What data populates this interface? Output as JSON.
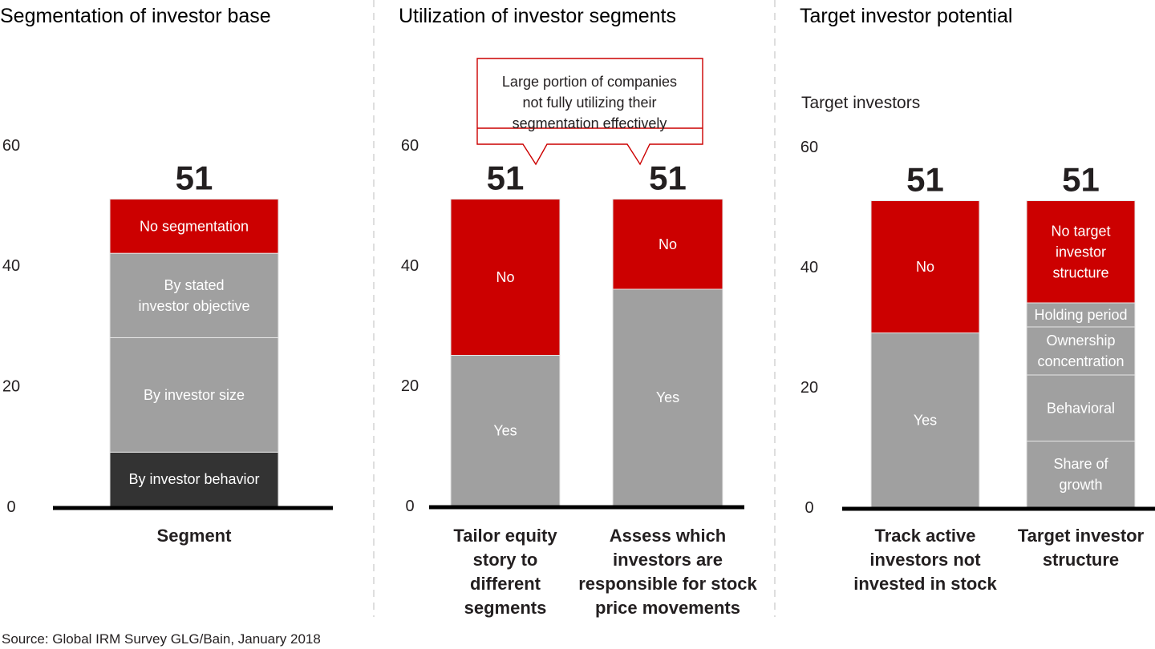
{
  "source": "Source: Global IRM Survey GLG/Bain, January 2018",
  "colors": {
    "red": "#cc0000",
    "grey": "#a0a0a0",
    "dark": "#333333"
  },
  "chart_data": [
    {
      "type": "bar",
      "stacked": true,
      "title": "Segmentation of investor base",
      "ylim": [
        0,
        60
      ],
      "yticks": [
        "0",
        "20",
        "40",
        "60"
      ],
      "categories": [
        {
          "label": [
            "Segment"
          ],
          "total": "51",
          "segments": [
            {
              "name": "By investor behavior",
              "lines": [
                "By investor behavior"
              ],
              "value": 9,
              "color": "dark"
            },
            {
              "name": "By investor size",
              "lines": [
                "By investor size"
              ],
              "value": 19,
              "color": "grey"
            },
            {
              "name": "By stated investor objective",
              "lines": [
                "By stated",
                "investor objective"
              ],
              "value": 14,
              "color": "grey"
            },
            {
              "name": "No segmentation",
              "lines": [
                "No segmentation"
              ],
              "value": 9,
              "color": "red"
            }
          ]
        }
      ]
    },
    {
      "type": "bar",
      "stacked": true,
      "title": "Utilization of investor segments",
      "ylim": [
        0,
        60
      ],
      "yticks": [
        "0",
        "20",
        "40",
        "60"
      ],
      "callout": [
        "Large portion of companies",
        "not fully utilizing their",
        "segmentation effectively"
      ],
      "categories": [
        {
          "label": [
            "Tailor equity",
            "story to",
            "different",
            "segments"
          ],
          "total": "51",
          "segments": [
            {
              "name": "Yes",
              "lines": [
                "Yes"
              ],
              "value": 25,
              "color": "grey"
            },
            {
              "name": "No",
              "lines": [
                "No"
              ],
              "value": 26,
              "color": "red"
            }
          ]
        },
        {
          "label": [
            "Assess which",
            "investors are",
            "responsible for stock",
            "price movements"
          ],
          "total": "51",
          "segments": [
            {
              "name": "Yes",
              "lines": [
                "Yes"
              ],
              "value": 36,
              "color": "grey"
            },
            {
              "name": "No",
              "lines": [
                "No"
              ],
              "value": 15,
              "color": "red"
            }
          ]
        }
      ]
    },
    {
      "type": "bar",
      "stacked": true,
      "title": "Target investor potential",
      "ylabel": "Target investors",
      "ylim": [
        0,
        60
      ],
      "yticks": [
        "0",
        "20",
        "40",
        "60"
      ],
      "categories": [
        {
          "label": [
            "Track active",
            "investors not",
            "invested in stock"
          ],
          "total": "51",
          "segments": [
            {
              "name": "Yes",
              "lines": [
                "Yes"
              ],
              "value": 29,
              "color": "grey"
            },
            {
              "name": "No",
              "lines": [
                "No"
              ],
              "value": 22,
              "color": "red"
            }
          ]
        },
        {
          "label": [
            "Target investor",
            "structure"
          ],
          "total": "51",
          "segments": [
            {
              "name": "Share of growth",
              "lines": [
                "Share of",
                "growth"
              ],
              "value": 11,
              "color": "grey"
            },
            {
              "name": "Behavioral",
              "lines": [
                "Behavioral"
              ],
              "value": 11,
              "color": "grey"
            },
            {
              "name": "Ownership concentration",
              "lines": [
                "Ownership",
                "concentration"
              ],
              "value": 8,
              "color": "grey"
            },
            {
              "name": "Holding period",
              "lines": [
                "Holding period"
              ],
              "value": 4,
              "color": "grey"
            },
            {
              "name": "No target investor structure",
              "lines": [
                "No target",
                "investor",
                "structure"
              ],
              "value": 17,
              "color": "red"
            }
          ]
        }
      ]
    }
  ]
}
